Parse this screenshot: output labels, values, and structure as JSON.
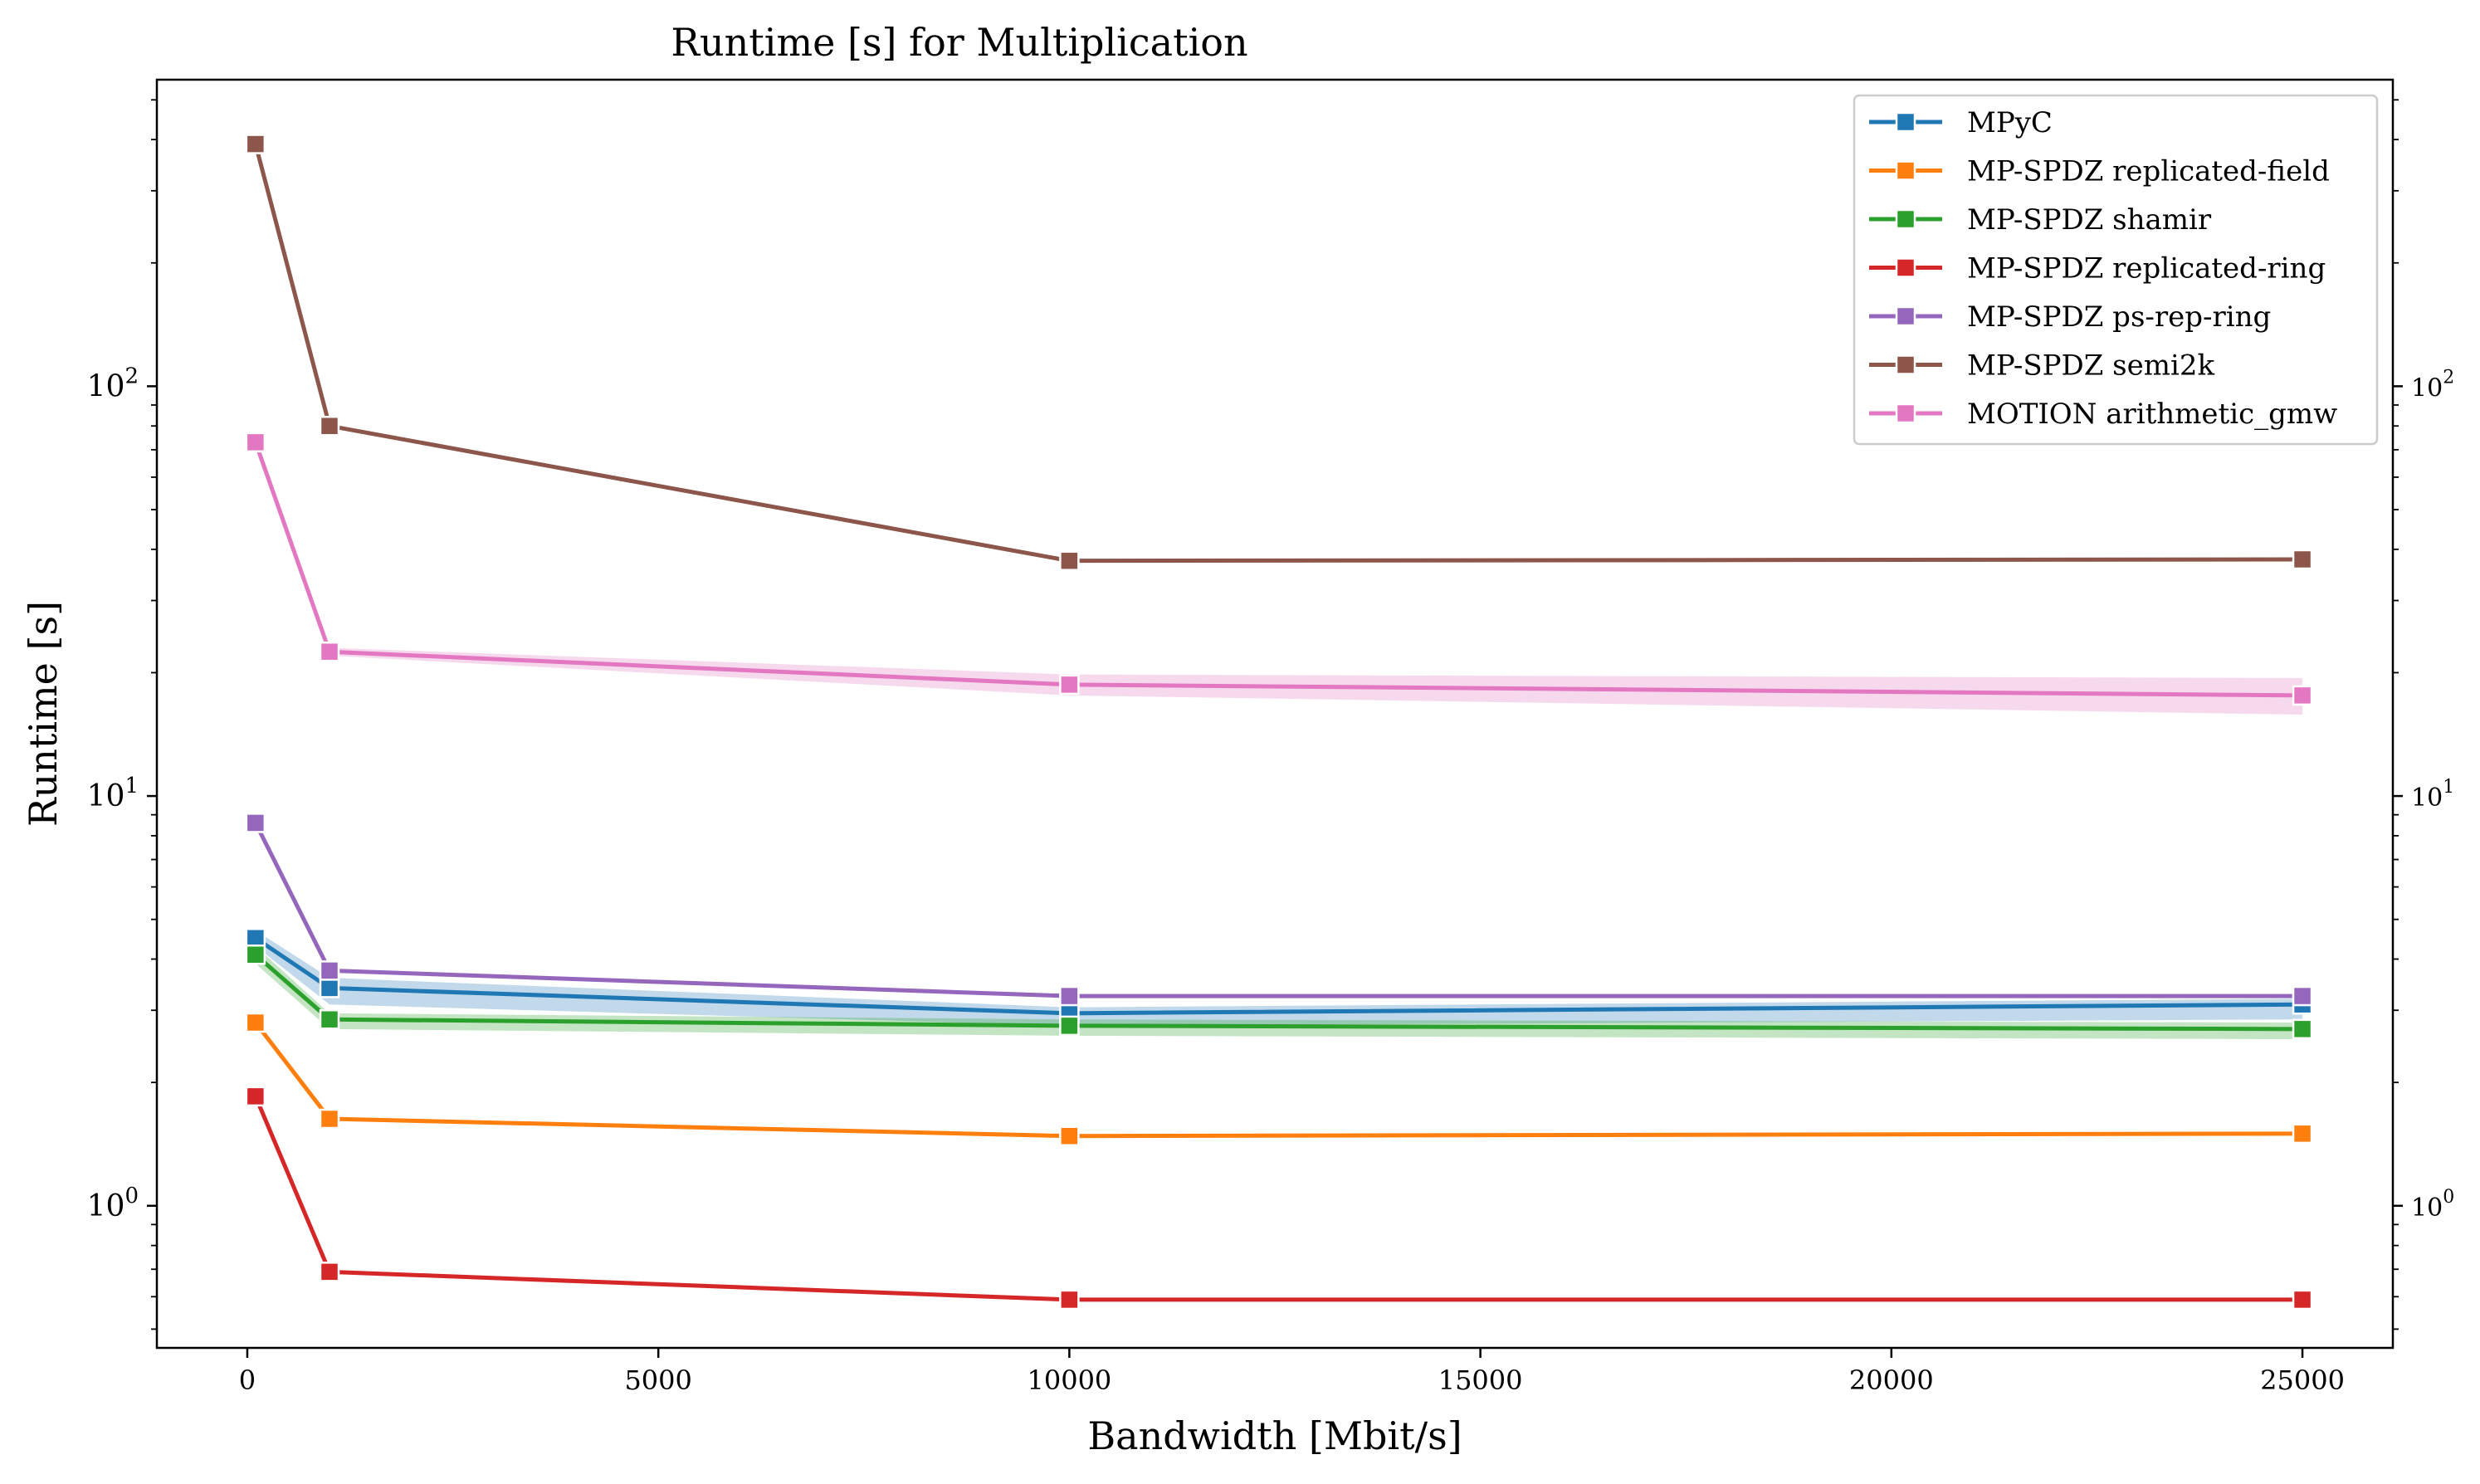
{
  "chart_data": {
    "type": "line",
    "title": "Runtime [s] for Multiplication",
    "xlabel": "Bandwidth [Mbit/s]",
    "ylabel": "Runtime [s]",
    "yscale": "log",
    "xlim": [
      -1100,
      26100
    ],
    "ylim": [
      0.45,
      560
    ],
    "x": [
      100,
      1000,
      10000,
      25000
    ],
    "x_ticks": [
      0,
      5000,
      10000,
      15000,
      20000,
      25000
    ],
    "x_tick_labels": [
      "0",
      "5000",
      "10000",
      "15000",
      "20000",
      "25000"
    ],
    "y_ticks": [
      1,
      10,
      100
    ],
    "y_tick_labels": [
      {
        "base": "10",
        "exp": "0"
      },
      {
        "base": "10",
        "exp": "1"
      },
      {
        "base": "10",
        "exp": "2"
      }
    ],
    "grid": false,
    "legend_position": "top-right",
    "series": [
      {
        "name": "MPyC",
        "color": "#1f77b4",
        "values": [
          4.5,
          3.4,
          2.95,
          3.1
        ],
        "band_lower": [
          4.3,
          3.1,
          2.75,
          2.85
        ],
        "band_upper": [
          4.7,
          3.6,
          3.05,
          3.2
        ]
      },
      {
        "name": "MP-SPDZ replicated-field",
        "color": "#ff7f0e",
        "values": [
          2.8,
          1.63,
          1.48,
          1.5
        ]
      },
      {
        "name": "MP-SPDZ shamir",
        "color": "#2ca02c",
        "values": [
          4.1,
          2.85,
          2.75,
          2.7
        ],
        "band_lower": [
          3.9,
          2.7,
          2.6,
          2.55
        ],
        "band_upper": [
          4.3,
          2.95,
          2.85,
          2.8
        ]
      },
      {
        "name": "MP-SPDZ replicated-ring",
        "color": "#d62728",
        "values": [
          1.85,
          0.69,
          0.59,
          0.59
        ]
      },
      {
        "name": "MP-SPDZ ps-rep-ring",
        "color": "#9467bd",
        "values": [
          8.6,
          3.75,
          3.25,
          3.25
        ]
      },
      {
        "name": "MP-SPDZ semi2k",
        "color": "#8c564b",
        "values": [
          390,
          80,
          37.5,
          37.8
        ]
      },
      {
        "name": "MOTION arithmetic_gmw",
        "color": "#e377c2",
        "values": [
          73,
          22.5,
          18.7,
          17.6
        ],
        "band_lower": [
          72,
          22,
          17.6,
          15.8
        ],
        "band_upper": [
          74,
          23,
          19.8,
          19.4
        ]
      }
    ]
  }
}
